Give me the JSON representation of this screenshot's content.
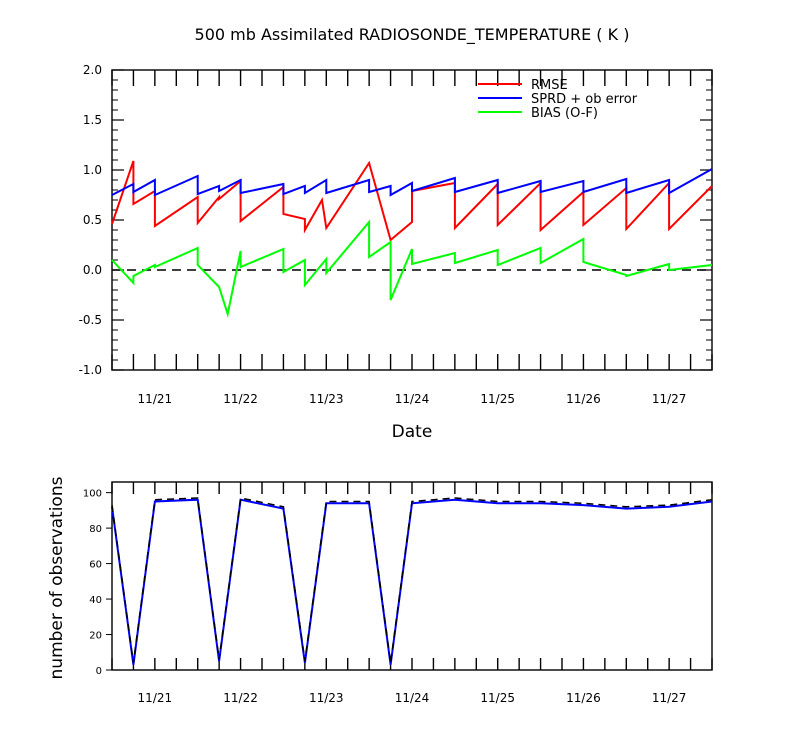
{
  "chart_data": [
    {
      "type": "line",
      "title": "500 mb Assimilated RADIOSONDE_TEMPERATURE ( K )",
      "xlabel": "Date",
      "ylabel": "",
      "x_tick_labels": [
        "11/21",
        "11/22",
        "11/23",
        "11/24",
        "11/25",
        "11/26",
        "11/27"
      ],
      "x_tick_values": [
        1,
        2,
        3,
        4,
        5,
        6,
        7
      ],
      "xlim": [
        0.5,
        7.5
      ],
      "ylim": [
        -1.0,
        2.0
      ],
      "y_tick_labels": [
        "-1.0",
        "-0.5",
        "0.0",
        "0.5",
        "1.0",
        "1.5",
        "2.0"
      ],
      "y_tick_values": [
        -1.0,
        -0.5,
        0.0,
        0.5,
        1.0,
        1.5,
        2.0
      ],
      "reference_line": 0.0,
      "legend": [
        "RMSE",
        "SPRD + ob error",
        "BIAS (O-F)"
      ],
      "legend_position": "top-right",
      "colors": {
        "RMSE": "#ff0000",
        "SPRD + ob error": "#0000ff",
        "BIAS (O-F)": "#00ff00",
        "zero_line": "#000000"
      },
      "series": [
        {
          "name": "RMSE",
          "x": [
            0.5,
            0.75,
            0.75,
            1.0,
            1.0,
            1.5,
            1.5,
            1.75,
            1.75,
            2.0,
            2.0,
            2.5,
            2.5,
            2.75,
            2.75,
            2.95,
            2.95,
            3.0,
            3.0,
            3.5,
            3.75,
            3.75,
            4.0,
            4.0,
            4.5,
            4.5,
            5.0,
            5.0,
            5.5,
            5.5,
            6.0,
            6.0,
            6.5,
            6.5,
            7.0,
            7.0,
            7.5
          ],
          "y": [
            0.46,
            1.09,
            0.66,
            0.79,
            0.44,
            0.73,
            0.47,
            0.73,
            0.71,
            0.89,
            0.49,
            0.83,
            0.56,
            0.51,
            0.4,
            0.7,
            0.7,
            0.42,
            0.42,
            1.07,
            0.3,
            0.3,
            0.48,
            0.79,
            0.87,
            0.42,
            0.86,
            0.45,
            0.87,
            0.4,
            0.78,
            0.45,
            0.82,
            0.41,
            0.87,
            0.41,
            0.84
          ]
        },
        {
          "name": "SPRD + ob error",
          "x": [
            0.5,
            0.75,
            0.75,
            1.0,
            1.0,
            1.5,
            1.5,
            1.75,
            1.75,
            2.0,
            2.0,
            2.5,
            2.5,
            2.75,
            2.75,
            3.0,
            3.0,
            3.5,
            3.5,
            3.75,
            3.75,
            4.0,
            4.0,
            4.5,
            4.5,
            5.0,
            5.0,
            5.5,
            5.5,
            6.0,
            6.0,
            6.5,
            6.5,
            7.0,
            7.0,
            7.5
          ],
          "y": [
            0.75,
            0.86,
            0.78,
            0.9,
            0.75,
            0.94,
            0.76,
            0.84,
            0.79,
            0.9,
            0.77,
            0.86,
            0.76,
            0.84,
            0.77,
            0.9,
            0.77,
            0.9,
            0.78,
            0.84,
            0.75,
            0.87,
            0.79,
            0.92,
            0.78,
            0.9,
            0.77,
            0.89,
            0.78,
            0.89,
            0.78,
            0.91,
            0.77,
            0.9,
            0.77,
            1.01
          ]
        },
        {
          "name": "BIAS (O-F)",
          "x": [
            0.5,
            0.75,
            0.75,
            1.0,
            1.0,
            1.5,
            1.5,
            1.75,
            1.85,
            2.0,
            2.0,
            2.5,
            2.5,
            2.75,
            2.75,
            3.0,
            3.0,
            3.5,
            3.5,
            3.75,
            3.75,
            4.0,
            4.0,
            4.5,
            4.5,
            5.0,
            5.0,
            5.5,
            5.5,
            6.0,
            6.0,
            6.5,
            6.5,
            7.0,
            7.0,
            7.5
          ],
          "y": [
            0.1,
            -0.13,
            -0.06,
            0.05,
            0.03,
            0.22,
            0.05,
            -0.17,
            -0.44,
            0.19,
            0.03,
            0.21,
            -0.02,
            0.1,
            -0.15,
            0.11,
            -0.03,
            0.48,
            0.13,
            0.28,
            -0.3,
            0.21,
            0.06,
            0.17,
            0.07,
            0.2,
            0.05,
            0.22,
            0.07,
            0.31,
            0.08,
            -0.05,
            -0.06,
            0.06,
            0.0,
            0.05
          ]
        }
      ]
    },
    {
      "type": "line",
      "title": "",
      "xlabel": "",
      "ylabel": "number of observations",
      "x_tick_labels": [
        "11/21",
        "11/22",
        "11/23",
        "11/24",
        "11/25",
        "11/26",
        "11/27"
      ],
      "x_tick_values": [
        1,
        2,
        3,
        4,
        5,
        6,
        7
      ],
      "xlim": [
        0.5,
        7.5
      ],
      "ylim": [
        0,
        106
      ],
      "y_tick_labels": [
        "0",
        "20",
        "40",
        "60",
        "80",
        "100"
      ],
      "y_tick_values": [
        0,
        20,
        40,
        60,
        80,
        100
      ],
      "colors": {
        "assimilated": "#0000ff",
        "total": "#000000"
      },
      "series": [
        {
          "style": "solid",
          "x": [
            0.5,
            0.75,
            1.0,
            1.5,
            1.75,
            2.0,
            2.5,
            2.75,
            3.0,
            3.5,
            3.75,
            4.0,
            4.5,
            5.0,
            5.5,
            6.0,
            6.5,
            7.0,
            7.5
          ],
          "y": [
            92,
            3,
            95,
            96,
            5,
            96,
            91,
            4,
            94,
            94,
            3,
            94,
            96,
            94,
            94,
            93,
            91,
            92,
            95
          ]
        },
        {
          "style": "dashed",
          "x": [
            0.5,
            0.75,
            1.0,
            1.5,
            1.75,
            2.0,
            2.5,
            2.75,
            3.0,
            3.5,
            3.75,
            4.0,
            4.5,
            5.0,
            5.5,
            6.0,
            6.5,
            7.0,
            7.5
          ],
          "y": [
            93,
            4,
            96,
            97,
            6,
            97,
            92,
            5,
            95,
            95,
            4,
            95,
            97,
            95,
            95,
            94,
            92,
            93,
            96
          ]
        }
      ]
    }
  ]
}
